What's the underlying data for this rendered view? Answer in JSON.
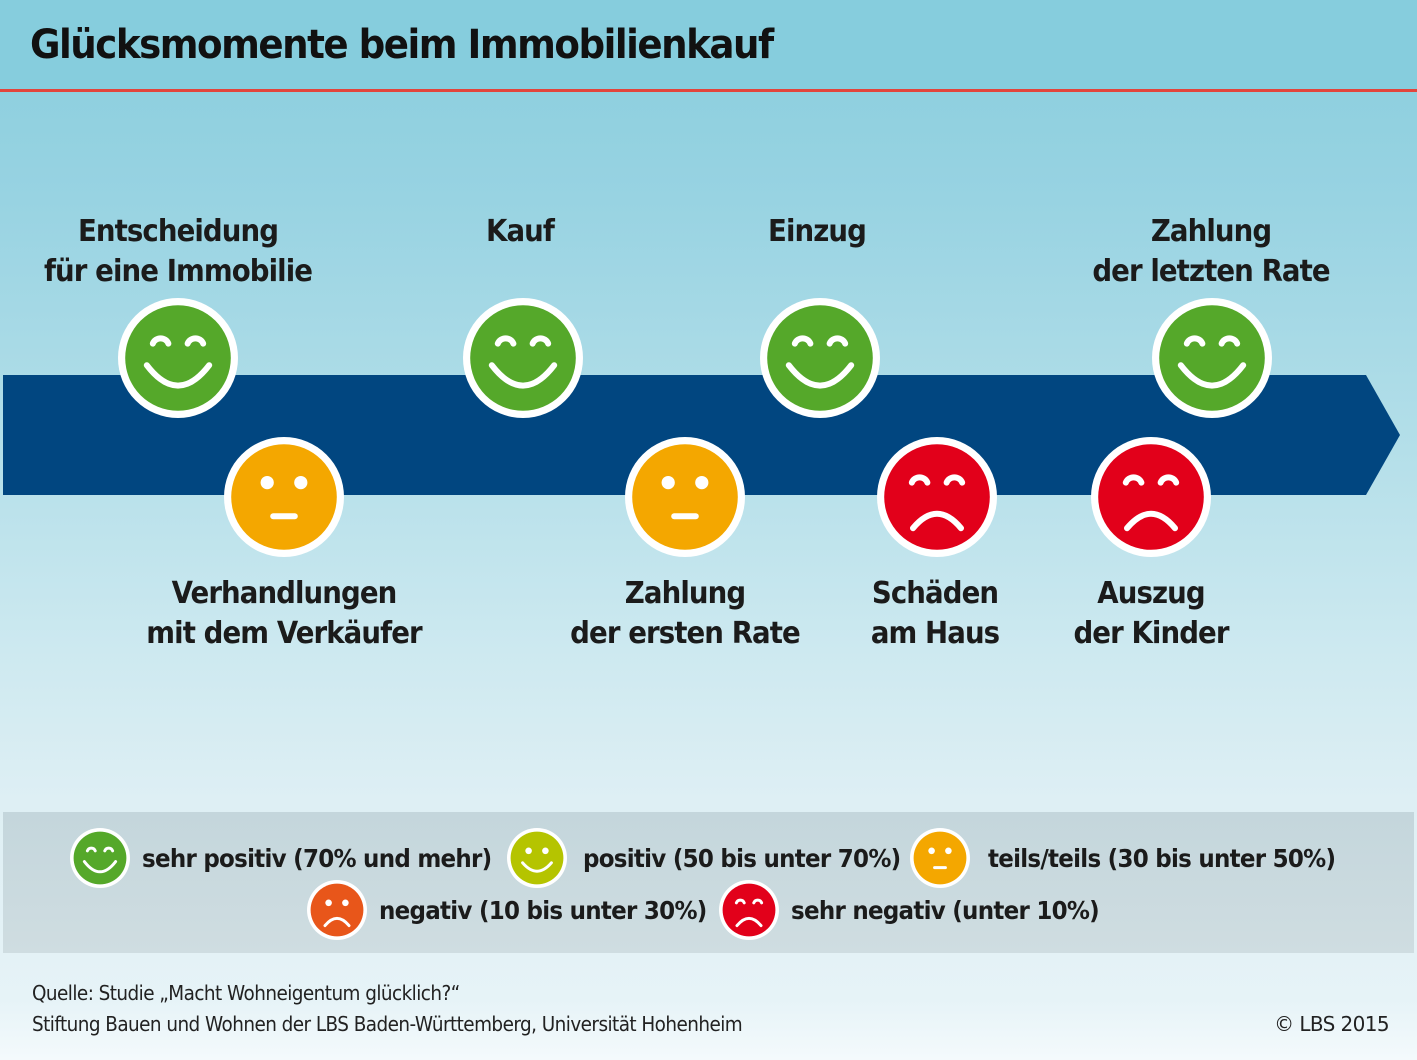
{
  "title": "Glücksmomente beim Immobilienkauf",
  "colors": {
    "header_bg": "#86cddd",
    "title_rule": "#e2453c",
    "arrow": "#014680",
    "very_positive": "#55a82a",
    "positive": "#b5c400",
    "neutral": "#f4a700",
    "negative": "#e8561a",
    "very_negative": "#e2001a",
    "legend_bg": "#c8d8dd"
  },
  "timeline": {
    "events": [
      {
        "id": "entscheidung",
        "lines": [
          "Entscheidung",
          "für eine Immobilie"
        ],
        "position": "above",
        "mood": "very_positive"
      },
      {
        "id": "verhandlungen",
        "lines": [
          "Verhandlungen",
          "mit dem Verkäufer"
        ],
        "position": "below",
        "mood": "neutral"
      },
      {
        "id": "kauf",
        "lines": [
          "Kauf"
        ],
        "position": "above",
        "mood": "very_positive"
      },
      {
        "id": "zahlung-erste-rate",
        "lines": [
          "Zahlung",
          "der ersten Rate"
        ],
        "position": "below",
        "mood": "neutral"
      },
      {
        "id": "einzug",
        "lines": [
          "Einzug"
        ],
        "position": "above",
        "mood": "very_positive"
      },
      {
        "id": "schaeden",
        "lines": [
          "Schäden",
          "am Haus"
        ],
        "position": "below",
        "mood": "very_negative"
      },
      {
        "id": "auszug-kinder",
        "lines": [
          "Auszug",
          "der Kinder"
        ],
        "position": "below",
        "mood": "very_negative"
      },
      {
        "id": "zahlung-letzte-rate",
        "lines": [
          "Zahlung",
          "der letzten Rate"
        ],
        "position": "above",
        "mood": "very_positive"
      }
    ]
  },
  "legend": {
    "items": [
      {
        "mood": "very_positive",
        "label": "sehr positiv (70% und mehr)",
        "icon": "very-happy-face-icon"
      },
      {
        "mood": "positive",
        "label": "positiv (50 bis unter 70%)",
        "icon": "happy-face-icon"
      },
      {
        "mood": "neutral",
        "label": "teils/teils (30 bis unter 50%)",
        "icon": "neutral-face-icon"
      },
      {
        "mood": "negative",
        "label": "negativ (10 bis unter 30%)",
        "icon": "sad-face-icon"
      },
      {
        "mood": "very_negative",
        "label": "sehr negativ (unter 10%)",
        "icon": "very-sad-face-icon"
      }
    ]
  },
  "footer": {
    "source_line1": "Quelle: Studie „Macht Wohneigentum glücklich?“",
    "source_line2": "Stiftung Bauen und Wohnen der LBS Baden-Württemberg, Universität Hohenheim",
    "copyright": "© LBS 2015"
  }
}
